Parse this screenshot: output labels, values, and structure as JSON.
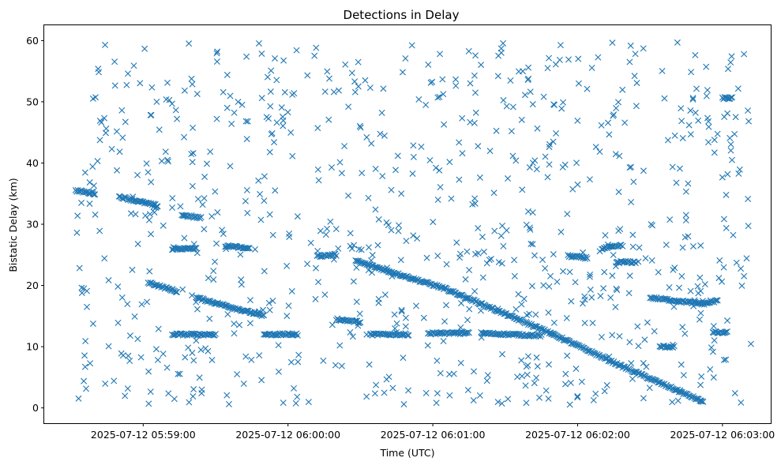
{
  "chart_data": {
    "type": "scatter",
    "title": "Detections in Delay",
    "xlabel": "Time (UTC)",
    "ylabel": "Bistatic Delay (km)",
    "marker": "x",
    "marker_color": "#1f77b4",
    "grid": false,
    "legend": "none",
    "xlim": [
      "2025-07-12 05:58:19",
      "2025-07-12 06:03:20"
    ],
    "ylim": [
      -2.5,
      62.5
    ],
    "x_ticks": [
      "2025-07-12 05:59:00",
      "2025-07-12 06:00:00",
      "2025-07-12 06:01:00",
      "2025-07-12 06:02:00",
      "2025-07-12 06:03:00"
    ],
    "y_ticks": [
      0,
      10,
      20,
      30,
      40,
      50,
      60
    ],
    "tracks": [
      {
        "start": [
          "2025-07-12 05:58:32",
          35.5
        ],
        "end": [
          "2025-07-12 05:58:40",
          35.0
        ]
      },
      {
        "start": [
          "2025-07-12 05:58:50",
          34.5
        ],
        "end": [
          "2025-07-12 05:59:06",
          33.0
        ]
      },
      {
        "start": [
          "2025-07-12 05:59:16",
          31.5
        ],
        "end": [
          "2025-07-12 05:59:24",
          31.0
        ]
      },
      {
        "start": [
          "2025-07-12 05:59:02",
          20.5
        ],
        "end": [
          "2025-07-12 05:59:14",
          19.0
        ]
      },
      {
        "start": [
          "2025-07-12 05:59:22",
          18.0
        ],
        "end": [
          "2025-07-12 05:59:50",
          15.0
        ]
      },
      {
        "start": [
          "2025-07-12 05:59:34",
          26.5
        ],
        "end": [
          "2025-07-12 05:59:44",
          26.0
        ]
      },
      {
        "start": [
          "2025-07-12 05:59:12",
          26.0
        ],
        "end": [
          "2025-07-12 05:59:22",
          26.0
        ]
      },
      {
        "start": [
          "2025-07-12 05:59:12",
          12.0
        ],
        "end": [
          "2025-07-12 05:59:30",
          12.0
        ]
      },
      {
        "start": [
          "2025-07-12 05:59:50",
          12.0
        ],
        "end": [
          "2025-07-12 06:00:04",
          12.0
        ]
      },
      {
        "start": [
          "2025-07-12 06:00:12",
          24.8
        ],
        "end": [
          "2025-07-12 06:00:20",
          25.0
        ]
      },
      {
        "start": [
          "2025-07-12 06:00:20",
          14.5
        ],
        "end": [
          "2025-07-12 06:00:30",
          14.0
        ]
      },
      {
        "start": [
          "2025-07-12 06:00:28",
          24.0
        ],
        "end": [
          "2025-07-12 06:01:05",
          19.5
        ]
      },
      {
        "start": [
          "2025-07-12 06:00:34",
          12.0
        ],
        "end": [
          "2025-07-12 06:00:50",
          12.0
        ]
      },
      {
        "start": [
          "2025-07-12 06:00:58",
          12.2
        ],
        "end": [
          "2025-07-12 06:01:15",
          12.2
        ]
      },
      {
        "start": [
          "2025-07-12 06:01:05",
          19.5
        ],
        "end": [
          "2025-07-12 06:01:50",
          12.0
        ]
      },
      {
        "start": [
          "2025-07-12 06:01:20",
          12.2
        ],
        "end": [
          "2025-07-12 06:01:45",
          11.8
        ]
      },
      {
        "start": [
          "2025-07-12 06:01:50",
          12.0
        ],
        "end": [
          "2025-07-12 06:02:20",
          6.5
        ]
      },
      {
        "start": [
          "2025-07-12 06:02:20",
          6.5
        ],
        "end": [
          "2025-07-12 06:02:52",
          1.0
        ]
      },
      {
        "start": [
          "2025-07-12 06:01:56",
          24.8
        ],
        "end": [
          "2025-07-12 06:02:04",
          24.5
        ]
      },
      {
        "start": [
          "2025-07-12 06:02:10",
          26.0
        ],
        "end": [
          "2025-07-12 06:02:18",
          26.5
        ]
      },
      {
        "start": [
          "2025-07-12 06:02:16",
          23.8
        ],
        "end": [
          "2025-07-12 06:02:24",
          23.8
        ]
      },
      {
        "start": [
          "2025-07-12 06:02:30",
          18.0
        ],
        "end": [
          "2025-07-12 06:02:52",
          17.0
        ]
      },
      {
        "start": [
          "2025-07-12 06:02:52",
          17.0
        ],
        "end": [
          "2025-07-12 06:02:58",
          17.5
        ]
      },
      {
        "start": [
          "2025-07-12 06:02:34",
          10.0
        ],
        "end": [
          "2025-07-12 06:02:40",
          10.0
        ]
      },
      {
        "start": [
          "2025-07-12 06:02:56",
          12.3
        ],
        "end": [
          "2025-07-12 06:03:02",
          12.3
        ]
      },
      {
        "start": [
          "2025-07-12 06:03:00",
          50.6
        ],
        "end": [
          "2025-07-12 06:03:04",
          50.6
        ]
      }
    ],
    "clutter": {
      "x_range": [
        "2025-07-12 05:58:32",
        "2025-07-12 06:03:12"
      ],
      "y_range": [
        0.5,
        59.8
      ],
      "approx_count": 820
    }
  }
}
